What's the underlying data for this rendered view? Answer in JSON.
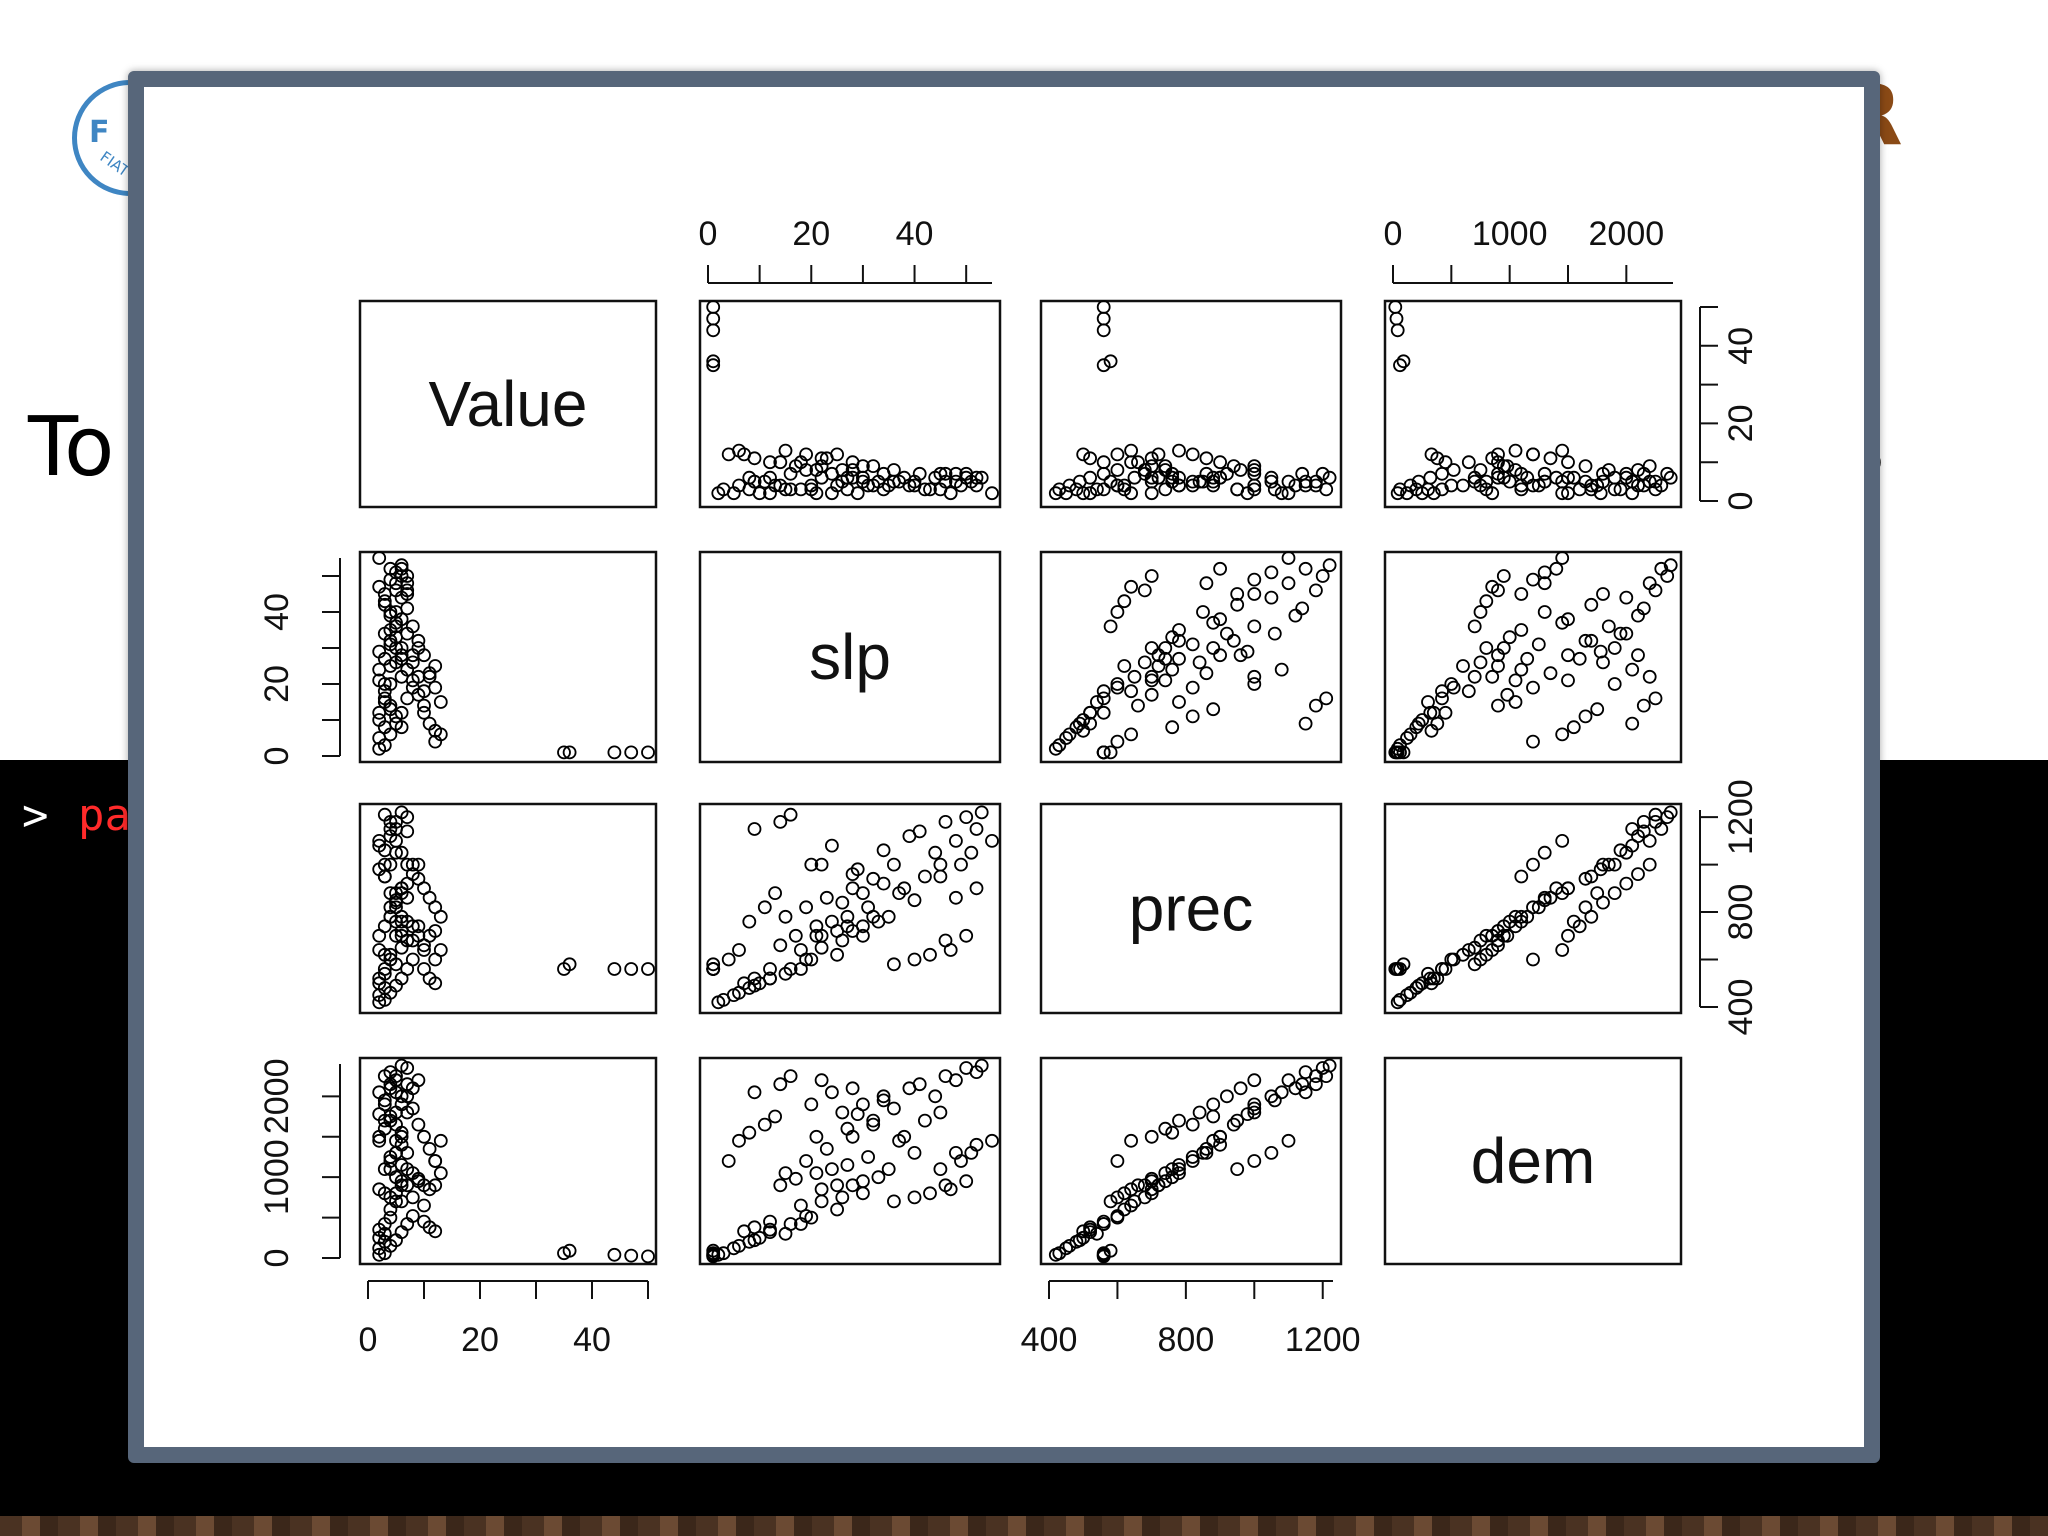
{
  "background_slide": {
    "logo_letter": "F",
    "logo_text": "FIAT",
    "corner_letter": "R",
    "heading_left": "To",
    "heading_right": "s",
    "console_prompt": ">",
    "console_command": "pa",
    "accent_color": "#8a4a16",
    "command_color": "#ff2a2a"
  },
  "popup": {
    "frame_color": "#57667a"
  },
  "chart_data": {
    "type": "scatter",
    "subtype": "pairs-matrix",
    "variables": [
      "Value",
      "slp",
      "prec",
      "dem"
    ],
    "ranges": {
      "Value": [
        0,
        50
      ],
      "slp": [
        0,
        55
      ],
      "prec": [
        400,
        1230
      ],
      "dem": [
        0,
        2400
      ]
    },
    "ticks": {
      "Value": [
        0,
        20,
        40
      ],
      "slp": [
        0,
        20,
        40
      ],
      "prec": [
        400,
        800,
        1200
      ],
      "dem": [
        0,
        1000,
        2000
      ]
    },
    "tick_labels": {
      "Value": [
        "0",
        "20",
        "40"
      ],
      "slp": [
        "0",
        "20",
        "40"
      ],
      "prec": [
        "400",
        "800",
        "1200"
      ],
      "dem": [
        "0",
        "1000",
        "2000"
      ]
    },
    "points": [
      [
        2,
        12,
        520,
        350
      ],
      [
        3,
        18,
        560,
        420
      ],
      [
        4,
        25,
        620,
        600
      ],
      [
        5,
        30,
        700,
        800
      ],
      [
        6,
        22,
        650,
        700
      ],
      [
        3,
        8,
        480,
        200
      ],
      [
        2,
        5,
        450,
        120
      ],
      [
        4,
        35,
        780,
        1100
      ],
      [
        5,
        40,
        850,
        1300
      ],
      [
        6,
        28,
        720,
        900
      ],
      [
        7,
        45,
        1000,
        1800
      ],
      [
        3,
        15,
        540,
        300
      ],
      [
        4,
        20,
        600,
        500
      ],
      [
        2,
        10,
        500,
        250
      ],
      [
        5,
        33,
        760,
        1000
      ],
      [
        6,
        38,
        900,
        1500
      ],
      [
        8,
        26,
        680,
        750
      ],
      [
        9,
        30,
        740,
        950
      ],
      [
        10,
        18,
        640,
        650
      ],
      [
        11,
        22,
        700,
        850
      ],
      [
        12,
        25,
        720,
        900
      ],
      [
        3,
        3,
        430,
        60
      ],
      [
        2,
        2,
        420,
        40
      ],
      [
        4,
        6,
        460,
        150
      ],
      [
        5,
        9,
        490,
        220
      ],
      [
        6,
        12,
        520,
        320
      ],
      [
        7,
        16,
        560,
        420
      ],
      [
        8,
        19,
        600,
        520
      ],
      [
        5,
        48,
        1100,
        2200
      ],
      [
        4,
        52,
        1150,
        2300
      ],
      [
        6,
        44,
        1050,
        2000
      ],
      [
        7,
        50,
        1200,
        2350
      ],
      [
        3,
        42,
        950,
        1700
      ],
      [
        5,
        37,
        880,
        1450
      ],
      [
        4,
        31,
        820,
        1250
      ],
      [
        6,
        27,
        780,
        1150
      ],
      [
        7,
        24,
        760,
        1100
      ],
      [
        8,
        21,
        740,
        1050
      ],
      [
        9,
        17,
        700,
        980
      ],
      [
        10,
        14,
        660,
        900
      ],
      [
        35,
        1,
        560,
        60
      ],
      [
        36,
        1,
        580,
        90
      ],
      [
        44,
        1,
        560,
        40
      ],
      [
        47,
        1,
        560,
        30
      ],
      [
        50,
        1,
        560,
        20
      ],
      [
        13,
        6,
        640,
        1450
      ],
      [
        12,
        4,
        600,
        1200
      ],
      [
        6,
        53,
        1220,
        2380
      ],
      [
        5,
        46,
        1180,
        2250
      ],
      [
        4,
        39,
        1120,
        2100
      ],
      [
        3,
        34,
        1060,
        1950
      ],
      [
        2,
        29,
        980,
        1780
      ],
      [
        6,
        8,
        760,
        1550
      ],
      [
        5,
        11,
        820,
        1650
      ],
      [
        4,
        13,
        880,
        1750
      ],
      [
        3,
        20,
        1000,
        1900
      ],
      [
        2,
        24,
        1080,
        2050
      ],
      [
        7,
        41,
        1140,
        2150
      ],
      [
        8,
        36,
        1000,
        1850
      ],
      [
        9,
        32,
        940,
        1650
      ],
      [
        10,
        28,
        900,
        1500
      ],
      [
        11,
        23,
        860,
        1350
      ],
      [
        12,
        19,
        820,
        1200
      ],
      [
        13,
        15,
        780,
        1050
      ],
      [
        2,
        47,
        640,
        850
      ],
      [
        3,
        43,
        620,
        800
      ],
      [
        4,
        40,
        600,
        750
      ],
      [
        5,
        36,
        580,
        700
      ],
      [
        6,
        50,
        700,
        950
      ],
      [
        7,
        46,
        680,
        900
      ],
      [
        4,
        14,
        1180,
        2150
      ],
      [
        3,
        16,
        1210,
        2250
      ],
      [
        5,
        9,
        1150,
        2050
      ],
      [
        6,
        52,
        900,
        1400
      ],
      [
        7,
        48,
        860,
        1300
      ],
      [
        2,
        21,
        700,
        1500
      ],
      [
        3,
        27,
        740,
        1600
      ],
      [
        4,
        32,
        780,
        1700
      ],
      [
        5,
        26,
        840,
        1800
      ],
      [
        6,
        30,
        880,
        1900
      ],
      [
        7,
        34,
        920,
        2000
      ],
      [
        8,
        28,
        960,
        2100
      ],
      [
        9,
        22,
        1000,
        2200
      ],
      [
        10,
        12,
        560,
        450
      ],
      [
        11,
        9,
        520,
        380
      ],
      [
        12,
        7,
        500,
        330
      ],
      [
        3,
        45,
        950,
        1100
      ],
      [
        4,
        49,
        1000,
        1200
      ],
      [
        5,
        51,
        1050,
        1300
      ],
      [
        2,
        55,
        1100,
        1450
      ]
    ]
  }
}
